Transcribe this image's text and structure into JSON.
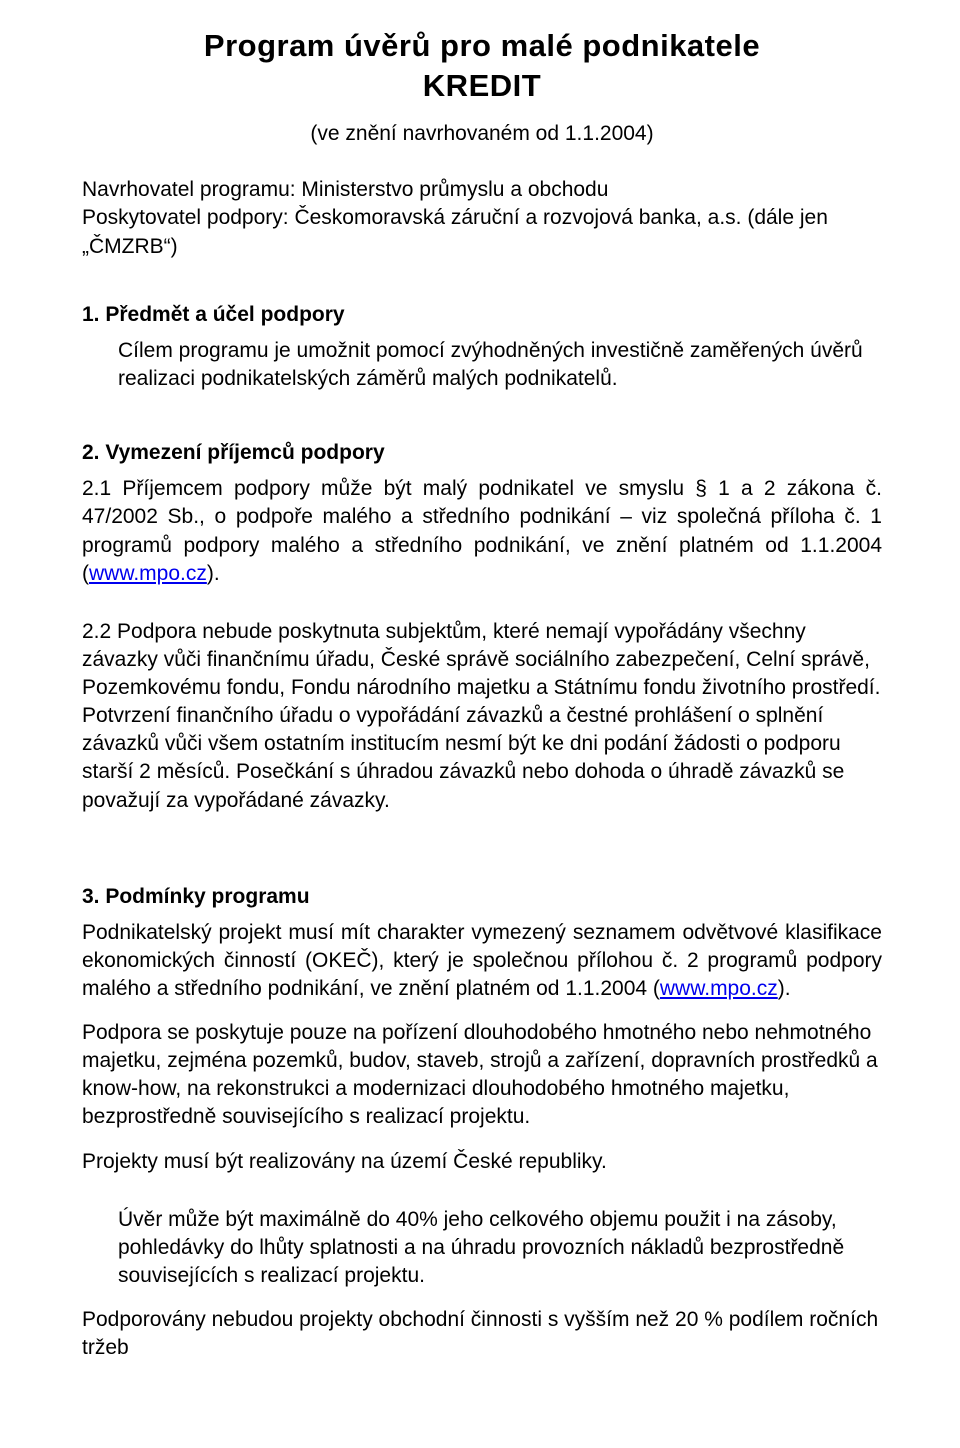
{
  "colors": {
    "text": "#000000",
    "background": "#ffffff",
    "link": "#0000ee"
  },
  "typography": {
    "family": "Arial",
    "title_size_pt": 23,
    "body_size_pt": 16,
    "heading_weight": "bold"
  },
  "title_line1": "Program úvěrů pro malé podnikatele",
  "title_line2": "KREDIT",
  "subtitle": "(ve znění navrhovaném od 1.1.2004)",
  "meta": {
    "line1": "Navrhovatel programu: Ministerstvo průmyslu a obchodu",
    "line2": "Poskytovatel podpory: Českomoravská záruční a rozvojová banka, a.s. (dále jen „ČMZRB“)"
  },
  "section1": {
    "heading": "1. Předmět a účel podpory",
    "body": "Cílem programu je umožnit pomocí zvýhodněných investičně zaměřených úvěrů realizaci podnikatelských záměrů malých podnikatelů."
  },
  "section2": {
    "heading": "2. Vymezení příjemců podpory",
    "p21_a": "2.1 Příjemcem podpory může být malý podnikatel ve smyslu § 1 a 2 zákona č. 47/2002 Sb., o podpoře malého a středního podnikání – viz společná příloha č. 1 programů podpory malého a středního podnikání, ve znění platném od 1.1.2004 (",
    "p21_link": "www.mpo.cz",
    "p21_b": ").",
    "p22": "2.2 Podpora nebude poskytnuta subjektům, které nemají vypořádány všechny závazky vůči finančnímu úřadu, České správě sociálního zabezpečení, Celní správě, Pozemkovému fondu, Fondu národního majetku a Státnímu fondu životního prostředí. Potvrzení finančního úřadu o vypořádání závazků a čestné prohlášení o splnění závazků vůči všem ostatním institucím nesmí být ke dni podání žádosti o podporu starší 2 měsíců. Posečkání s úhradou závazků nebo dohoda o úhradě závazků se považují za vypořádané závazky."
  },
  "section3": {
    "heading": "3. Podmínky programu",
    "p1_a": "Podnikatelský projekt musí mít charakter vymezený seznamem odvětvové klasifikace ekonomických činností (OKEČ), který je společnou přílohou č. 2 programů podpory malého a středního podnikání, ve znění platném od 1.1.2004 (",
    "p1_link": "www.mpo.cz",
    "p1_b": ").",
    "p2": "Podpora se poskytuje pouze na pořízení dlouhodobého hmotného nebo nehmotného majetku, zejména pozemků, budov, staveb, strojů a zařízení, dopravních prostředků a know-how, na rekonstrukci a modernizaci dlouhodobého hmotného majetku, bezprostředně souvisejícího s realizací projektu.",
    "p3": "Projekty musí být realizovány na území České republiky.",
    "p4": "Úvěr může být maximálně do 40% jeho celkového objemu použit i na zásoby, pohledávky do lhůty splatnosti a na úhradu provozních nákladů bezprostředně souvisejících s realizací projektu.",
    "p5": "Podporovány nebudou projekty obchodní činnosti s vyšším než 20 % podílem ročních tržeb"
  }
}
